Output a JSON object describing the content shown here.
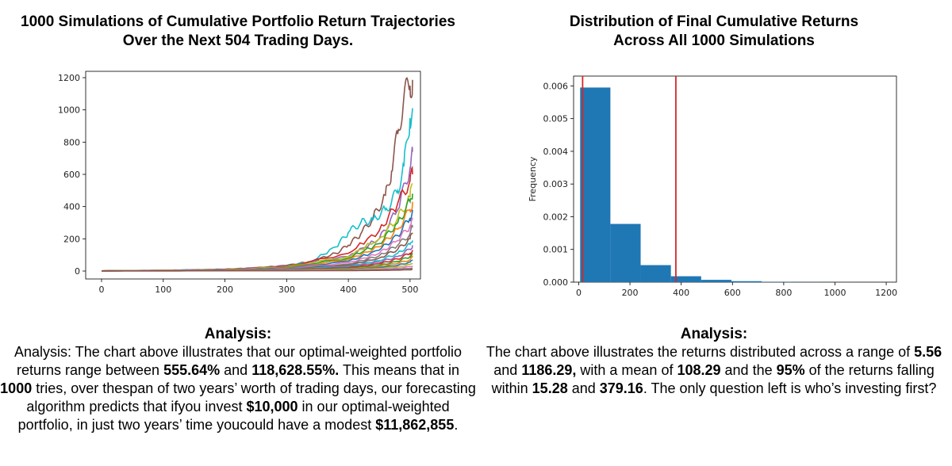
{
  "left": {
    "title_line1": "1000 Simulations of Cumulative Portfolio Return Trajectories",
    "title_line2": "Over the Next 504 Trading Days.",
    "analysis_heading": "Analysis:",
    "analysis": [
      {
        "t": "Analysis: The chart above illustrates that our optimal-weighted portfolio returns range between ",
        "b": false
      },
      {
        "t": "555.64%",
        "b": true
      },
      {
        "t": " and ",
        "b": false
      },
      {
        "t": "118,628.55%.",
        "b": true
      },
      {
        "t": " This means that in ",
        "b": false
      },
      {
        "t": "1000",
        "b": true
      },
      {
        "t": " tries, over thespan of two years’ worth of trading days, our forecasting algorithm predicts that ifyou invest ",
        "b": false
      },
      {
        "t": "$10,000",
        "b": true
      },
      {
        "t": " in our optimal-weighted portfolio, in just two years’ time youcould have a modest ",
        "b": false
      },
      {
        "t": "$11,862,855",
        "b": true
      },
      {
        "t": ".",
        "b": false
      }
    ]
  },
  "right": {
    "title_line1": "Distribution of Final Cumulative Returns",
    "title_line2": "Across All 1000 Simulations",
    "analysis_heading": "Analysis:",
    "analysis": [
      {
        "t": "The chart above illustrates the returns distributed across a range of ",
        "b": false
      },
      {
        "t": "5.56",
        "b": true
      },
      {
        "t": " and ",
        "b": false
      },
      {
        "t": "1186.29,",
        "b": true
      },
      {
        "t": " with a mean of ",
        "b": false
      },
      {
        "t": "108.29",
        "b": true
      },
      {
        "t": " and the ",
        "b": false
      },
      {
        "t": "95%",
        "b": true
      },
      {
        "t": " of the returns falling within ",
        "b": false
      },
      {
        "t": "15.28",
        "b": true
      },
      {
        "t": " and ",
        "b": false
      },
      {
        "t": "379.16",
        "b": true
      },
      {
        "t": ". The only question left is who’s investing first?",
        "b": false
      }
    ]
  },
  "chart_data": [
    {
      "type": "line",
      "title": "",
      "xlabel": "",
      "ylabel": "",
      "xlim": [
        0,
        504
      ],
      "ylim": [
        0,
        1200
      ],
      "xticks": [
        0,
        100,
        200,
        300,
        400,
        500
      ],
      "yticks": [
        0,
        200,
        400,
        600,
        800,
        1000,
        1200
      ],
      "grid": false,
      "series": [
        {
          "color": "#8c564b",
          "x": [
            0,
            50,
            100,
            150,
            200,
            250,
            300,
            340,
            380,
            400,
            420,
            440,
            460,
            470,
            480,
            490,
            500,
            504
          ],
          "y": [
            1,
            3,
            5,
            8,
            12,
            20,
            35,
            60,
            110,
            160,
            230,
            330,
            470,
            620,
            850,
            1080,
            1150,
            1186
          ]
        },
        {
          "color": "#17becf",
          "x": [
            0,
            50,
            100,
            150,
            200,
            250,
            300,
            340,
            380,
            400,
            420,
            440,
            460,
            470,
            480,
            490,
            500,
            504
          ],
          "y": [
            1,
            3,
            5,
            7,
            10,
            18,
            30,
            60,
            150,
            240,
            300,
            320,
            380,
            430,
            500,
            650,
            950,
            1010
          ]
        },
        {
          "color": "#9467bd",
          "x": [
            0,
            100,
            200,
            300,
            400,
            450,
            480,
            500,
            504
          ],
          "y": [
            1,
            5,
            10,
            30,
            90,
            200,
            380,
            640,
            740
          ]
        },
        {
          "color": "#d62728",
          "x": [
            0,
            100,
            200,
            300,
            400,
            450,
            480,
            500,
            504
          ],
          "y": [
            1,
            4,
            9,
            28,
            110,
            250,
            420,
            560,
            600
          ]
        },
        {
          "color": "#bcbd22",
          "x": [
            0,
            100,
            200,
            300,
            400,
            450,
            480,
            500,
            504
          ],
          "y": [
            1,
            4,
            9,
            25,
            90,
            200,
            330,
            460,
            540
          ]
        },
        {
          "color": "#2ca02c",
          "x": [
            0,
            100,
            200,
            300,
            400,
            450,
            480,
            500,
            504
          ],
          "y": [
            1,
            4,
            8,
            22,
            80,
            170,
            300,
            430,
            480
          ]
        },
        {
          "color": "#ff7f0e",
          "x": [
            0,
            100,
            200,
            300,
            400,
            450,
            480,
            500,
            504
          ],
          "y": [
            1,
            4,
            8,
            20,
            70,
            150,
            260,
            380,
            430
          ]
        },
        {
          "color": "#1f77b4",
          "x": [
            0,
            100,
            200,
            300,
            400,
            450,
            480,
            500,
            504
          ],
          "y": [
            1,
            3,
            7,
            18,
            60,
            130,
            220,
            330,
            380
          ]
        },
        {
          "color": "#e377c2",
          "x": [
            0,
            100,
            200,
            300,
            400,
            450,
            480,
            500,
            504
          ],
          "y": [
            1,
            3,
            7,
            16,
            50,
            110,
            190,
            280,
            320
          ]
        },
        {
          "color": "#7f7f7f",
          "x": [
            0,
            100,
            200,
            300,
            400,
            450,
            480,
            500,
            504
          ],
          "y": [
            1,
            3,
            6,
            14,
            42,
            95,
            160,
            230,
            270
          ]
        },
        {
          "color": "#8c564b",
          "x": [
            0,
            100,
            200,
            300,
            400,
            450,
            480,
            500,
            504
          ],
          "y": [
            1,
            3,
            6,
            12,
            36,
            80,
            135,
            200,
            230
          ]
        },
        {
          "color": "#17becf",
          "x": [
            0,
            100,
            200,
            300,
            400,
            450,
            480,
            500,
            504
          ],
          "y": [
            1,
            3,
            5,
            11,
            30,
            65,
            110,
            165,
            190
          ]
        },
        {
          "color": "#9467bd",
          "x": [
            0,
            100,
            200,
            300,
            400,
            450,
            480,
            500,
            504
          ],
          "y": [
            1,
            2,
            5,
            10,
            25,
            55,
            90,
            135,
            160
          ]
        },
        {
          "color": "#d62728",
          "x": [
            0,
            100,
            200,
            300,
            400,
            450,
            480,
            500,
            504
          ],
          "y": [
            1,
            2,
            4,
            9,
            20,
            45,
            75,
            110,
            130
          ]
        },
        {
          "color": "#2ca02c",
          "x": [
            0,
            100,
            200,
            300,
            400,
            450,
            480,
            500,
            504
          ],
          "y": [
            1,
            2,
            4,
            8,
            16,
            35,
            60,
            90,
            105
          ]
        },
        {
          "color": "#ff7f0e",
          "x": [
            0,
            100,
            200,
            300,
            400,
            450,
            480,
            500,
            504
          ],
          "y": [
            1,
            2,
            4,
            7,
            13,
            28,
            48,
            70,
            85
          ]
        },
        {
          "color": "#1f77b4",
          "x": [
            0,
            100,
            200,
            300,
            400,
            450,
            480,
            500,
            504
          ],
          "y": [
            1,
            2,
            3,
            6,
            10,
            22,
            36,
            55,
            65
          ]
        },
        {
          "color": "#bcbd22",
          "x": [
            0,
            100,
            200,
            300,
            400,
            450,
            480,
            500,
            504
          ],
          "y": [
            1,
            2,
            3,
            5,
            8,
            16,
            27,
            40,
            48
          ]
        },
        {
          "color": "#e377c2",
          "x": [
            0,
            100,
            200,
            300,
            400,
            450,
            480,
            500,
            504
          ],
          "y": [
            1,
            2,
            3,
            4,
            6,
            11,
            18,
            27,
            32
          ]
        },
        {
          "color": "#7f7f7f",
          "x": [
            0,
            100,
            200,
            300,
            400,
            450,
            480,
            500,
            504
          ],
          "y": [
            1,
            1,
            2,
            3,
            4,
            7,
            11,
            16,
            20
          ]
        },
        {
          "color": "#8c564b",
          "x": [
            0,
            100,
            200,
            300,
            400,
            450,
            480,
            500,
            504
          ],
          "y": [
            1,
            1,
            2,
            2,
            3,
            4,
            6,
            8,
            10
          ]
        }
      ]
    },
    {
      "type": "bar",
      "title": "",
      "xlabel": "",
      "ylabel": "Frequency",
      "xlim": [
        -20,
        1240
      ],
      "ylim": [
        0,
        0.0063
      ],
      "xticks": [
        0,
        200,
        400,
        600,
        800,
        1000,
        1200
      ],
      "yticks": [
        "0.000",
        "0.001",
        "0.002",
        "0.003",
        "0.004",
        "0.005",
        "0.006"
      ],
      "grid": false,
      "bar_color": "#1f77b4",
      "bins": [
        {
          "x0": 5.56,
          "x1": 123.63,
          "value": 0.00595
        },
        {
          "x0": 123.63,
          "x1": 241.7,
          "value": 0.00178
        },
        {
          "x0": 241.7,
          "x1": 359.77,
          "value": 0.00052
        },
        {
          "x0": 359.77,
          "x1": 477.84,
          "value": 0.00018
        },
        {
          "x0": 477.84,
          "x1": 595.91,
          "value": 7e-05
        },
        {
          "x0": 595.91,
          "x1": 713.98,
          "value": 3e-05
        },
        {
          "x0": 713.98,
          "x1": 832.05,
          "value": 8e-06
        },
        {
          "x0": 832.05,
          "x1": 950.12,
          "value": 4e-06
        },
        {
          "x0": 950.12,
          "x1": 1068.19,
          "value": 2e-06
        },
        {
          "x0": 1068.19,
          "x1": 1186.29,
          "value": 1e-06
        }
      ],
      "vlines": [
        {
          "x": 15.28,
          "color": "#d62728"
        },
        {
          "x": 379.16,
          "color": "#d62728"
        }
      ]
    }
  ]
}
